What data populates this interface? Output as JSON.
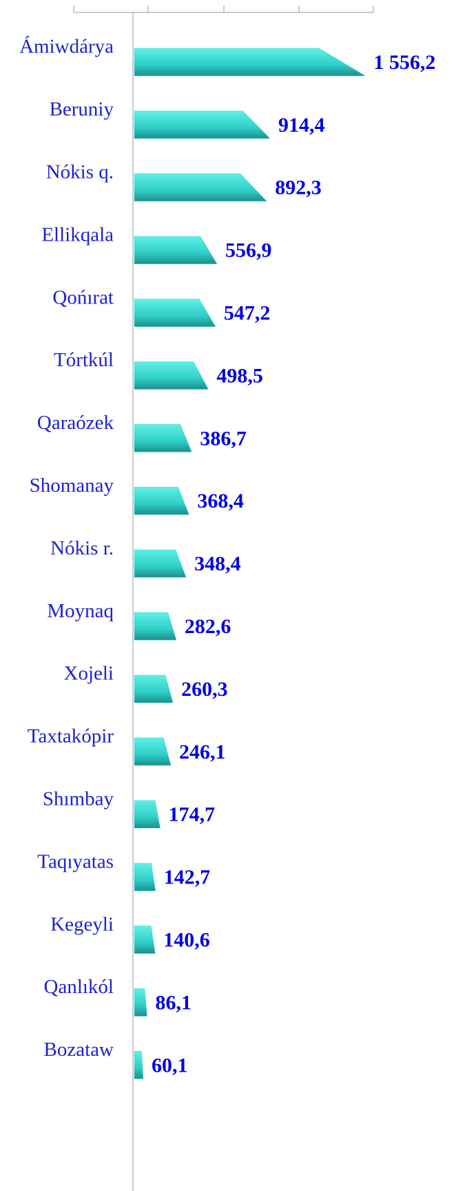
{
  "chart_data": {
    "type": "barh",
    "categories": [
      "Ámiwdárya",
      "Beruniy",
      "Nókis q.",
      "Ellikqala",
      "Qońırat",
      "Tórtkúl",
      "Qaraózek",
      "Shomanay",
      "Nókis r.",
      "Moynaq",
      "Xojeli",
      "Taxtakópir",
      "Shımbay",
      "Taqıyatas",
      "Kegeyli",
      "Qanlıkól",
      "Bozataw"
    ],
    "values": [
      1556.2,
      914.4,
      892.3,
      556.9,
      547.2,
      498.5,
      386.7,
      368.4,
      348.4,
      282.6,
      260.3,
      246.1,
      174.7,
      142.7,
      140.6,
      86.1,
      60.1
    ],
    "value_labels": [
      "1 556,2",
      "914,4",
      "892,3",
      "556,9",
      "547,2",
      "498,5",
      "386,7",
      "368,4",
      "348,4",
      "282,6",
      "260,3",
      "246,1",
      "174,7",
      "142,7",
      "140,6",
      "86,1",
      "60,1"
    ],
    "color": "#3cd6cf",
    "xlim": [
      0,
      2000
    ]
  }
}
